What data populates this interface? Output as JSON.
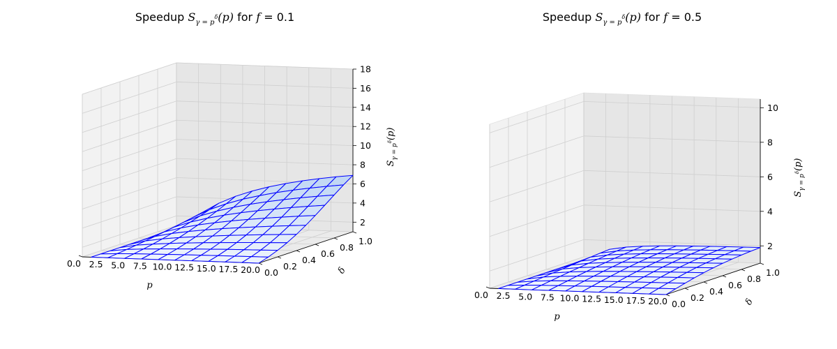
{
  "chart_data": [
    {
      "type": "surface",
      "title": "Speedup S_{γ=p^δ}(p) for f = 0.1",
      "title_parts": {
        "prefix": "Speedup ",
        "sym": "S",
        "sub": "γ = p",
        "sup": "δ",
        "arg": "(p)",
        "suffix": " for ",
        "fvar": "f",
        "fval": " = 0.1"
      },
      "f": 0.1,
      "xlabel": "p",
      "ylabel": "δ",
      "zlabel": "S_{γ=p^δ}(p)",
      "zlabel_parts": {
        "sym": "S",
        "sub": "γ = p",
        "sup": "δ",
        "arg": "(p)"
      },
      "xlim": [
        0,
        20
      ],
      "ylim": [
        0,
        1
      ],
      "zlim": [
        1,
        18
      ],
      "xticks": [
        "0.0",
        "2.5",
        "5.0",
        "7.5",
        "10.0",
        "12.5",
        "15.0",
        "17.5",
        "20.0"
      ],
      "yticks": [
        "0.0",
        "0.2",
        "0.4",
        "0.6",
        "0.8",
        "1.0"
      ],
      "zticks": [
        "2",
        "4",
        "6",
        "8",
        "10",
        "12",
        "14",
        "16",
        "18"
      ],
      "p_grid": [
        1,
        2.9,
        4.8,
        6.7,
        8.6,
        10.5,
        12.4,
        14.3,
        16.2,
        18.1,
        20
      ],
      "delta_grid": [
        0,
        0.1,
        0.2,
        0.3,
        0.4,
        0.5,
        0.6,
        0.7,
        0.8,
        0.9,
        1.0
      ],
      "surface_color": "#1f6fd8",
      "mesh_color": "#0000ff"
    },
    {
      "type": "surface",
      "title": "Speedup S_{γ=p^δ}(p) for f = 0.5",
      "title_parts": {
        "prefix": "Speedup ",
        "sym": "S",
        "sub": "γ = p",
        "sup": "δ",
        "arg": "(p)",
        "suffix": " for ",
        "fvar": "f",
        "fval": " = 0.5"
      },
      "f": 0.5,
      "xlabel": "p",
      "ylabel": "δ",
      "zlabel": "S_{γ=p^δ}(p)",
      "zlabel_parts": {
        "sym": "S",
        "sub": "γ = p",
        "sup": "δ",
        "arg": "(p)"
      },
      "xlim": [
        0,
        20
      ],
      "ylim": [
        0,
        1
      ],
      "zlim": [
        1,
        10.5
      ],
      "xticks": [
        "0.0",
        "2.5",
        "5.0",
        "7.5",
        "10.0",
        "12.5",
        "15.0",
        "17.5",
        "20.0"
      ],
      "yticks": [
        "0.0",
        "0.2",
        "0.4",
        "0.6",
        "0.8",
        "1.0"
      ],
      "zticks": [
        "2",
        "4",
        "6",
        "8",
        "10"
      ],
      "p_grid": [
        1,
        2.9,
        4.8,
        6.7,
        8.6,
        10.5,
        12.4,
        14.3,
        16.2,
        18.1,
        20
      ],
      "delta_grid": [
        0,
        0.1,
        0.2,
        0.3,
        0.4,
        0.5,
        0.6,
        0.7,
        0.8,
        0.9,
        1.0
      ],
      "surface_color": "#1f6fd8",
      "mesh_color": "#0000ff"
    }
  ]
}
